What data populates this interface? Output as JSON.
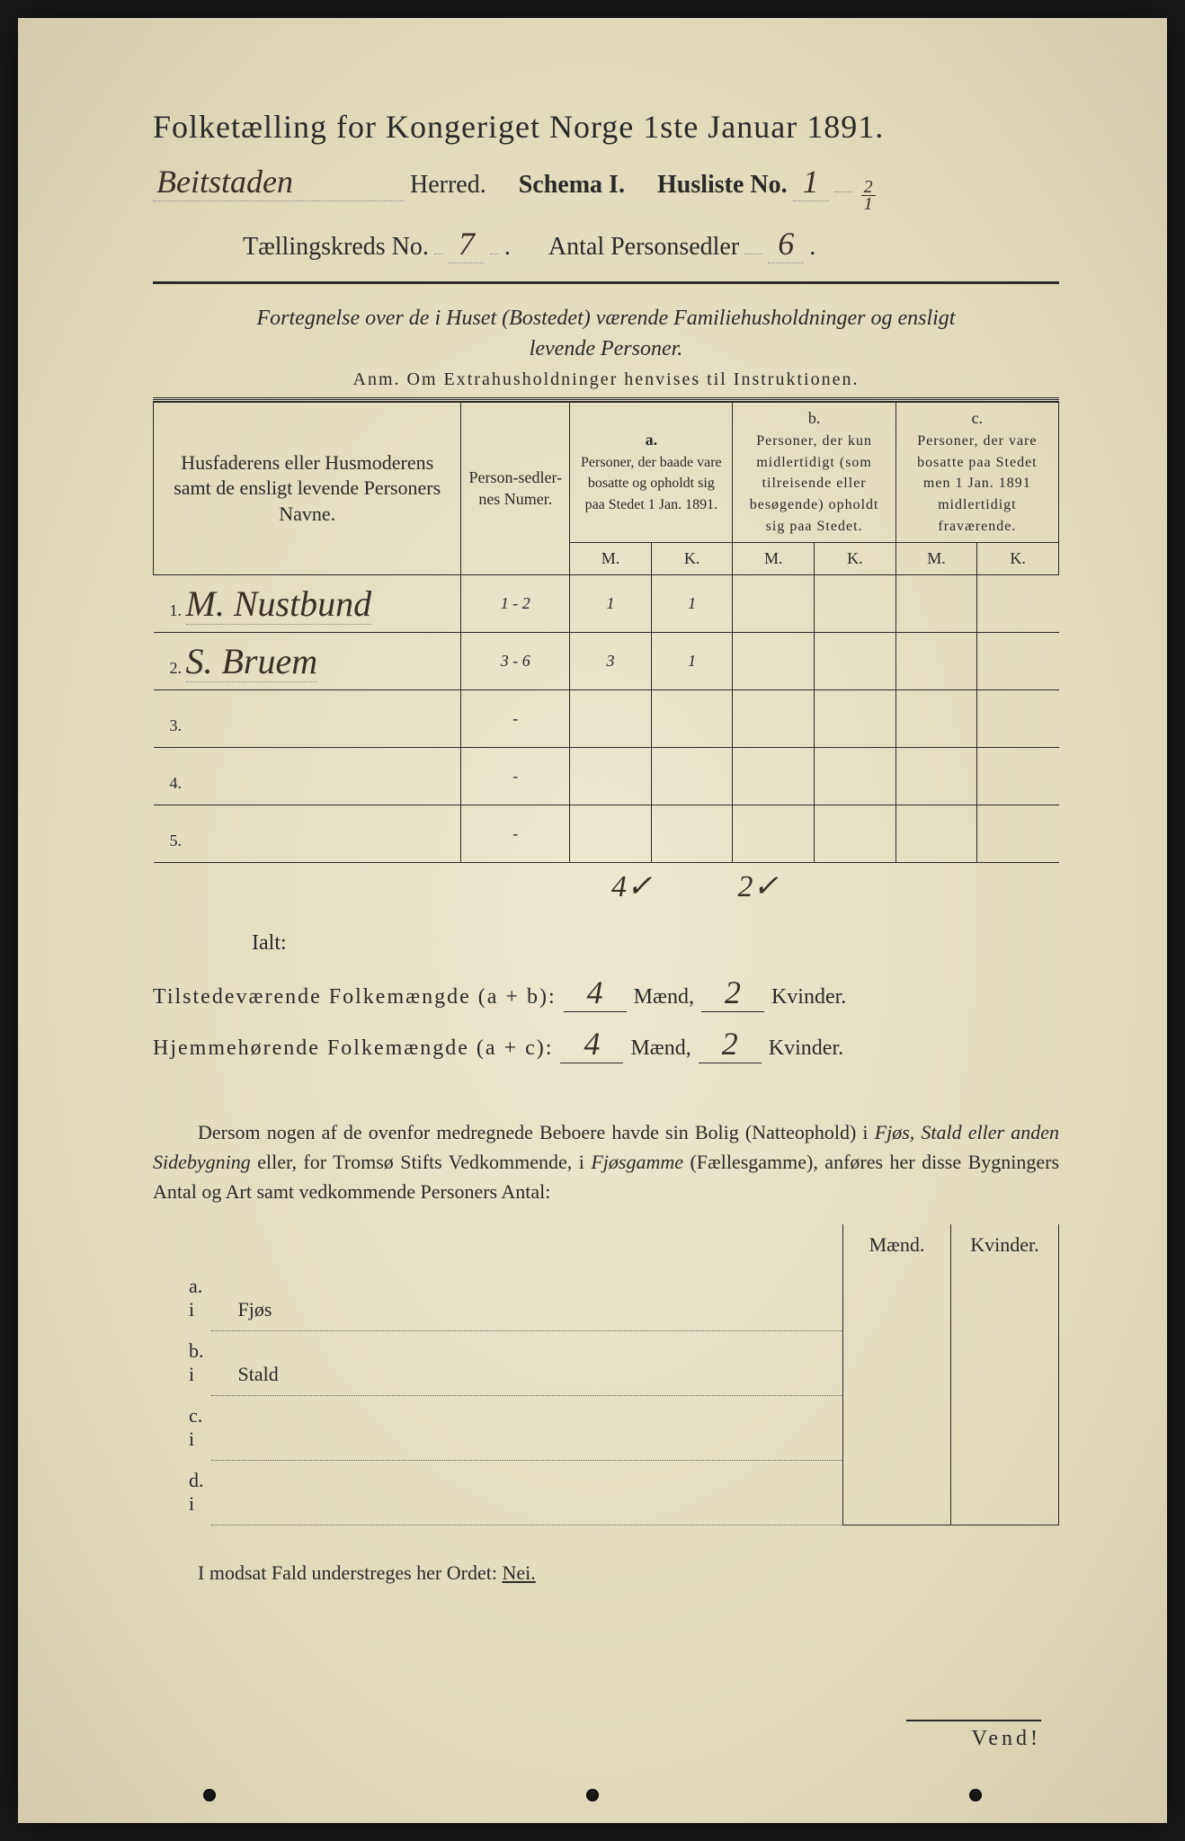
{
  "header": {
    "title": "Folketælling for Kongeriget Norge 1ste Januar 1891.",
    "herred_value": "Beitstaden",
    "herred_label": "Herred.",
    "schema_label": "Schema I.",
    "husliste_label": "Husliste No.",
    "husliste_value": "1",
    "husliste_frac_num": "2",
    "husliste_frac_den": "1",
    "kreds_label": "Tællingskreds No.",
    "kreds_value": "7",
    "antal_label": "Antal Personsedler",
    "antal_value": "6"
  },
  "subtitle": {
    "line1": "Fortegnelse over de i Huset (Bostedet) værende Familiehusholdninger og ensligt",
    "line2": "levende Personer.",
    "anm": "Anm.   Om Extrahusholdninger henvises til Instruktionen."
  },
  "table": {
    "head_name": "Husfaderens eller Husmoderens samt de ensligt levende Personers Navne.",
    "head_num": "Person-sedler-nes Numer.",
    "head_a_top": "a.",
    "head_a": "Personer, der baade vare bosatte og opholdt sig paa Stedet 1 Jan. 1891.",
    "head_b_top": "b.",
    "head_b": "Personer, der kun midlertidigt (som tilreisende eller besøgende) opholdt sig paa Stedet.",
    "head_c_top": "c.",
    "head_c": "Personer, der vare bosatte paa Stedet men 1 Jan. 1891 midlertidigt fraværende.",
    "m": "M.",
    "k": "K.",
    "rows": [
      {
        "n": "1.",
        "name": "M. Nustbund",
        "num": "1 - 2",
        "am": "1",
        "ak": "1",
        "bm": "",
        "bk": "",
        "cm": "",
        "ck": ""
      },
      {
        "n": "2.",
        "name": "S. Bruem",
        "num": "3 - 6",
        "am": "3",
        "ak": "1",
        "bm": "",
        "bk": "",
        "cm": "",
        "ck": ""
      },
      {
        "n": "3.",
        "name": "",
        "num": "-",
        "am": "",
        "ak": "",
        "bm": "",
        "bk": "",
        "cm": "",
        "ck": ""
      },
      {
        "n": "4.",
        "name": "",
        "num": "-",
        "am": "",
        "ak": "",
        "bm": "",
        "bk": "",
        "cm": "",
        "ck": ""
      },
      {
        "n": "5.",
        "name": "",
        "num": "-",
        "am": "",
        "ak": "",
        "bm": "",
        "bk": "",
        "cm": "",
        "ck": ""
      }
    ],
    "col_totals": {
      "am": "4✓",
      "ak": "2✓"
    }
  },
  "ialt": {
    "label": "Ialt:",
    "line1_label": "Tilstedeværende Folkemængde (a + b):",
    "line1_m": "4",
    "line1_k": "2",
    "line2_label": "Hjemmehørende Folkemængde (a + c):",
    "line2_m": "4",
    "line2_k": "2",
    "maend": "Mænd,",
    "kvinder": "Kvinder."
  },
  "para": "Dersom nogen af de ovenfor medregnede Beboere havde sin Bolig (Natteophold) i Fjøs, Stald eller anden Sidebygning eller, for Tromsø Stifts Vedkommende, i Fjøsgamme (Fællesgamme), anføres her disse Bygningers Antal og Art samt vedkommende Personers Antal:",
  "mk": {
    "maend": "Mænd.",
    "kvinder": "Kvinder.",
    "rows": [
      {
        "lbl": "a.   i",
        "txt": "Fjøs"
      },
      {
        "lbl": "b.   i",
        "txt": "Stald"
      },
      {
        "lbl": "c.   i",
        "txt": ""
      },
      {
        "lbl": "d.   i",
        "txt": ""
      }
    ]
  },
  "nei": "I modsat Fald understreges her Ordet: ",
  "nei_word": "Nei.",
  "vend": "Vend!",
  "colors": {
    "paper": "#e8e3c8",
    "ink": "#2a2a2a",
    "hand": "#3a3028",
    "background": "#1a1a1a"
  }
}
